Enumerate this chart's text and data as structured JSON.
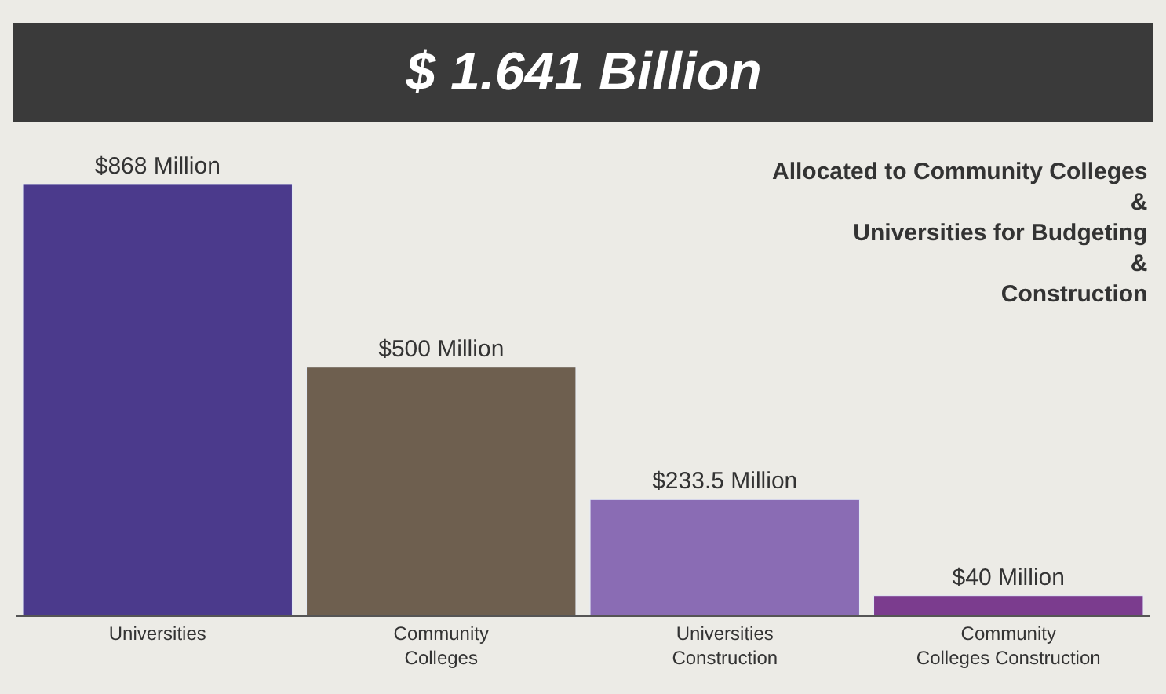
{
  "chart_data": {
    "type": "bar",
    "title": "$ 1.641 Billion",
    "subtitle": "Allocated to Community Colleges\n&\nUniversities for Budgeting\n&\nConstruction",
    "categories": [
      "Universities",
      "Community Colleges",
      "Universities Construction",
      "Community Colleges Construction"
    ],
    "values": [
      868,
      500,
      233.5,
      40
    ],
    "value_labels": [
      "$868 Million",
      "$500 Million",
      "$233.5 Million",
      "$40 Million"
    ],
    "colors": [
      "#4b3a8c",
      "#6e5f4f",
      "#8a6cb4",
      "#7b3c8e"
    ],
    "tick_labels": "x",
    "legend": false
  }
}
